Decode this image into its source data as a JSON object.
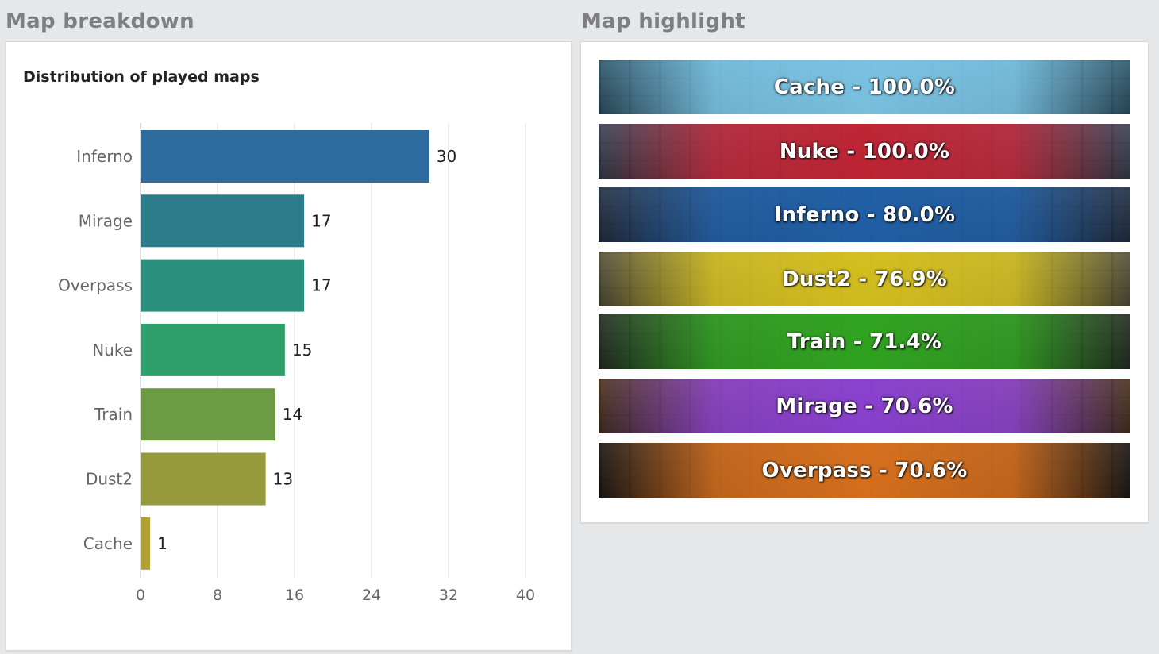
{
  "sections": {
    "left_title": "Map breakdown",
    "right_title": "Map highlight"
  },
  "chart_data": {
    "type": "bar",
    "orientation": "horizontal",
    "title": "Distribution of played maps",
    "categories": [
      "Inferno",
      "Mirage",
      "Overpass",
      "Nuke",
      "Train",
      "Dust2",
      "Cache"
    ],
    "values": [
      30,
      17,
      17,
      15,
      14,
      13,
      1
    ],
    "colors": [
      "#2e6b9e",
      "#2a7d88",
      "#2b8f7d",
      "#2fa06c",
      "#6c9a45",
      "#97993d",
      "#b1a032"
    ],
    "xlim": [
      0,
      40
    ],
    "xticks": [
      0,
      8,
      16,
      24,
      32,
      40
    ],
    "xlabel": "",
    "ylabel": "",
    "grid": true,
    "data_labels": true
  },
  "highlights": [
    {
      "map": "Cache",
      "label": "Cache - 100.0%",
      "color": "#7cc4e4",
      "base": "#4d8fb0",
      "icon": "cache-banner-image"
    },
    {
      "map": "Nuke",
      "label": "Nuke - 100.0%",
      "color": "#c4202f",
      "base": "#5a6e8a",
      "icon": "nuke-banner-image"
    },
    {
      "map": "Inferno",
      "label": "Inferno - 80.0%",
      "color": "#1e5fa8",
      "base": "#3a4e6e",
      "icon": "inferno-banner-image"
    },
    {
      "map": "Dust2",
      "label": "Dust2 - 76.9%",
      "color": "#d8c21a",
      "base": "#8a8460",
      "icon": "dust2-banner-image"
    },
    {
      "map": "Train",
      "label": "Train - 71.4%",
      "color": "#2fa81e",
      "base": "#3b4a3a",
      "icon": "train-banner-image"
    },
    {
      "map": "Mirage",
      "label": "Mirage - 70.6%",
      "color": "#8a3fd8",
      "base": "#7a5330",
      "icon": "mirage-banner-image"
    },
    {
      "map": "Overpass",
      "label": "Overpass - 70.6%",
      "color": "#e0731c",
      "base": "#2a2420",
      "icon": "overpass-banner-image"
    }
  ]
}
